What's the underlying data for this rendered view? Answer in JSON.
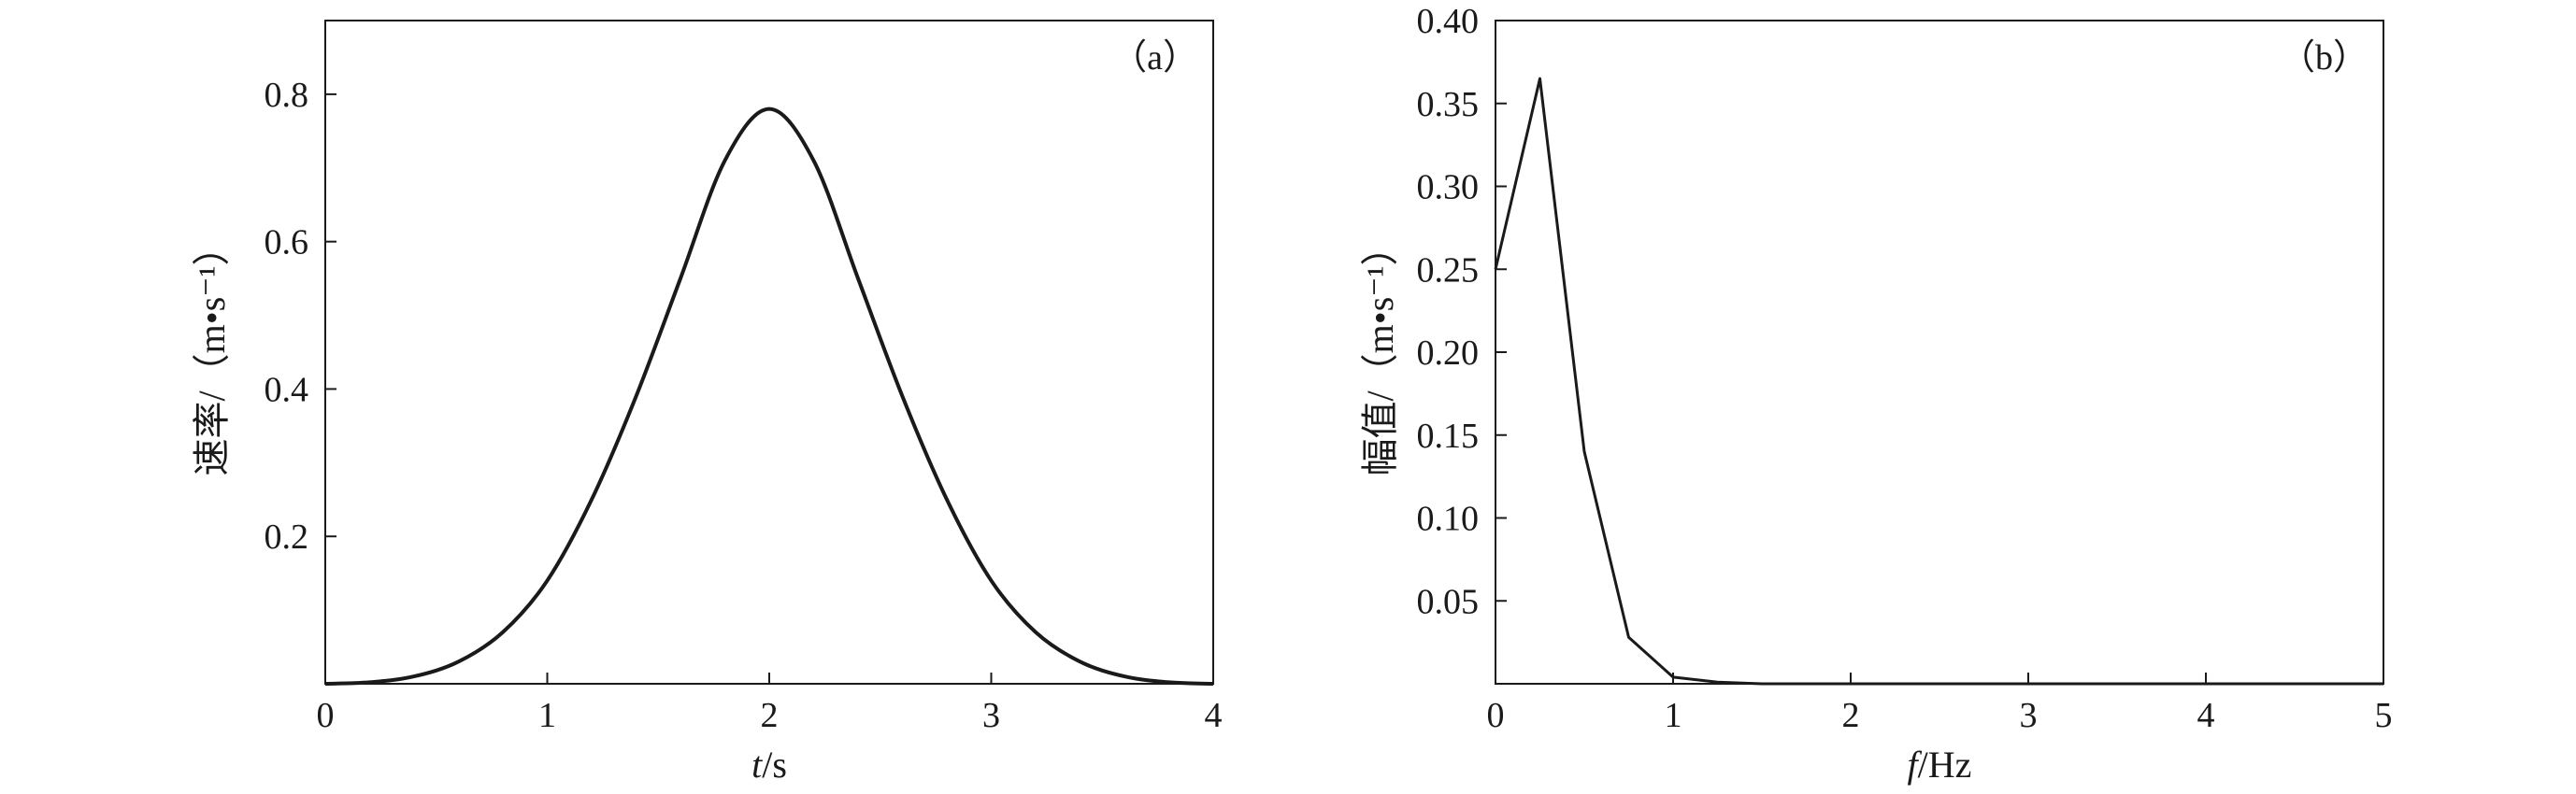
{
  "chart_data": [
    {
      "type": "line",
      "panel_label": "（a）",
      "xlabel_italic": "t",
      "xlabel_rest": "/s",
      "ylabel": "速率/（m•s⁻¹）",
      "xlim": [
        0,
        4
      ],
      "ylim": [
        0,
        0.9
      ],
      "x_ticks": [
        0,
        1,
        2,
        3,
        4
      ],
      "x_tick_labels": [
        "0",
        "1",
        "2",
        "3",
        "4"
      ],
      "y_ticks": [
        0.2,
        0.4,
        0.6,
        0.8
      ],
      "y_tick_labels": [
        "0.2",
        "0.4",
        "0.6",
        "0.8"
      ],
      "grid": false,
      "series": [
        {
          "x": [
            0,
            0.2,
            0.4,
            0.6,
            0.8,
            1.0,
            1.2,
            1.4,
            1.6,
            1.8,
            2.0,
            2.2,
            2.4,
            2.6,
            2.8,
            3.0,
            3.2,
            3.4,
            3.6,
            3.8,
            4.0
          ],
          "y": [
            0.0,
            0.002,
            0.01,
            0.03,
            0.07,
            0.14,
            0.25,
            0.39,
            0.55,
            0.71,
            0.78,
            0.71,
            0.55,
            0.39,
            0.25,
            0.14,
            0.07,
            0.03,
            0.01,
            0.002,
            0.0
          ]
        }
      ]
    },
    {
      "type": "line",
      "panel_label": "（b）",
      "xlabel_italic": "f",
      "xlabel_rest": "/Hz",
      "ylabel": "幅值/（m•s⁻¹）",
      "xlim": [
        0,
        5
      ],
      "ylim": [
        0,
        0.4
      ],
      "x_ticks": [
        0,
        1,
        2,
        3,
        4,
        5
      ],
      "x_tick_labels": [
        "0",
        "1",
        "2",
        "3",
        "4",
        "5"
      ],
      "y_ticks": [
        0.05,
        0.1,
        0.15,
        0.2,
        0.25,
        0.3,
        0.35,
        0.4
      ],
      "y_tick_labels": [
        "0.05",
        "0.10",
        "0.15",
        "0.20",
        "0.25",
        "0.30",
        "0.35",
        "0.40"
      ],
      "grid": false,
      "series": [
        {
          "x": [
            0,
            0.25,
            0.5,
            0.75,
            1.0,
            1.25,
            1.5,
            2.0,
            3.0,
            4.0,
            5.0
          ],
          "y": [
            0.25,
            0.365,
            0.14,
            0.028,
            0.004,
            0.001,
            0.0,
            0.0,
            0.0,
            0.0,
            0.0
          ]
        }
      ]
    }
  ]
}
